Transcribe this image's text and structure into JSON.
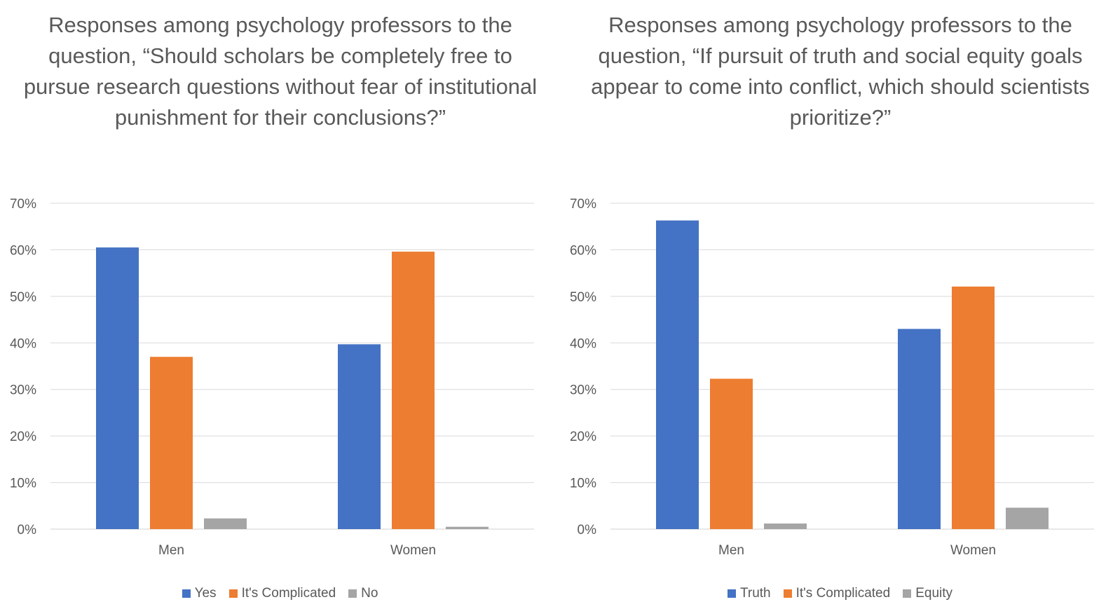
{
  "chart_data": [
    {
      "type": "bar",
      "title": "Responses among psychology professors to the question, “Should scholars be completely free to pursue research questions without fear of institutional punishment for their conclusions?”",
      "categories": [
        "Men",
        "Women"
      ],
      "series": [
        {
          "name": "Yes",
          "color": "#4472C4",
          "values": [
            60.5,
            39.7
          ]
        },
        {
          "name": "It's Complicated",
          "color": "#ED7D31",
          "values": [
            37.0,
            59.6
          ]
        },
        {
          "name": "No",
          "color": "#A5A5A5",
          "values": [
            2.3,
            0.5
          ]
        }
      ],
      "yticks": [
        "0%",
        "10%",
        "20%",
        "30%",
        "40%",
        "50%",
        "60%",
        "70%"
      ],
      "ylim": [
        0,
        70
      ],
      "grid": true,
      "legend": "bottom"
    },
    {
      "type": "bar",
      "title": "Responses among psychology professors to the question, “If pursuit of truth and social equity goals appear to come into conflict, which should scientists prioritize?”",
      "categories": [
        "Men",
        "Women"
      ],
      "series": [
        {
          "name": "Truth",
          "color": "#4472C4",
          "values": [
            66.3,
            43.0
          ]
        },
        {
          "name": "It's Complicated",
          "color": "#ED7D31",
          "values": [
            32.3,
            52.1
          ]
        },
        {
          "name": "Equity",
          "color": "#A5A5A5",
          "values": [
            1.2,
            4.6
          ]
        }
      ],
      "yticks": [
        "0%",
        "10%",
        "20%",
        "30%",
        "40%",
        "50%",
        "60%",
        "70%"
      ],
      "ylim": [
        0,
        70
      ],
      "grid": true,
      "legend": "bottom"
    }
  ]
}
